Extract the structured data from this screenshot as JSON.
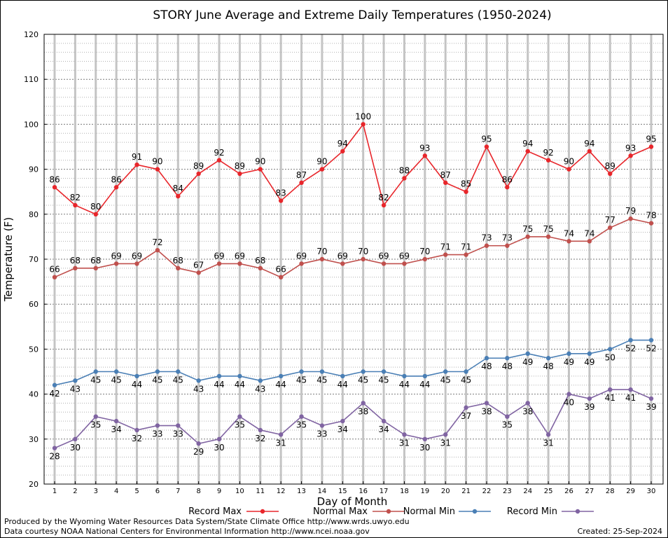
{
  "chart_data": {
    "type": "line",
    "title": "STORY June Average and Extreme Daily Temperatures (1950-2024)",
    "xlabel": "Day of Month",
    "ylabel": "Temperature (F)",
    "x": [
      1,
      2,
      3,
      4,
      5,
      6,
      7,
      8,
      9,
      10,
      11,
      12,
      13,
      14,
      15,
      16,
      17,
      18,
      19,
      20,
      21,
      22,
      23,
      24,
      25,
      26,
      27,
      28,
      29,
      30
    ],
    "xlim": [
      1,
      30
    ],
    "ylim": [
      20,
      120
    ],
    "yticks": [
      20,
      30,
      40,
      50,
      60,
      70,
      80,
      90,
      100,
      110,
      120
    ],
    "grid": true,
    "legend_position": "bottom",
    "series": [
      {
        "name": "Record Max",
        "color": "#e8262b",
        "values": [
          86,
          82,
          80,
          86,
          91,
          90,
          84,
          89,
          92,
          89,
          90,
          83,
          87,
          90,
          94,
          100,
          82,
          88,
          93,
          87,
          85,
          95,
          86,
          94,
          92,
          90,
          94,
          89,
          93,
          95
        ]
      },
      {
        "name": "Normal Max",
        "color": "#c0504d",
        "values": [
          66,
          68,
          68,
          69,
          69,
          72,
          68,
          67,
          69,
          69,
          68,
          66,
          69,
          70,
          69,
          70,
          69,
          69,
          70,
          71,
          71,
          73,
          73,
          75,
          75,
          74,
          74,
          77,
          79,
          78
        ]
      },
      {
        "name": "Normal Min",
        "color": "#4a7fb5",
        "values": [
          42,
          43,
          45,
          45,
          44,
          45,
          45,
          43,
          44,
          44,
          43,
          44,
          45,
          45,
          44,
          45,
          45,
          44,
          44,
          45,
          45,
          48,
          48,
          49,
          48,
          49,
          49,
          50,
          52,
          52
        ]
      },
      {
        "name": "Record Min",
        "color": "#8064a2",
        "values": [
          28,
          30,
          35,
          34,
          32,
          33,
          33,
          29,
          30,
          35,
          32,
          31,
          35,
          33,
          34,
          38,
          34,
          31,
          30,
          31,
          37,
          38,
          35,
          38,
          31,
          40,
          39,
          41,
          41,
          39
        ]
      }
    ]
  },
  "footer": {
    "produced_by": "Produced by the Wyoming Water Resources Data System/State Climate Office http://www.wrds.uwyo.edu",
    "data_courtesy": "Data courtesy NOAA National Centers for Environmental Information http://www.ncei.noaa.gov",
    "created": "Created:  25-Sep-2024"
  }
}
